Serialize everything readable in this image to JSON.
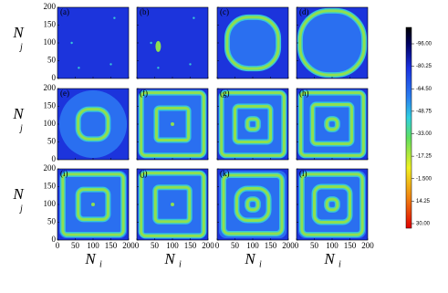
{
  "panels": [
    {
      "label": "(a)"
    },
    {
      "label": "(b)"
    },
    {
      "label": "(c)"
    },
    {
      "label": "(d)"
    },
    {
      "label": "(e)"
    },
    {
      "label": "(f)"
    },
    {
      "label": "(g)"
    },
    {
      "label": "(h)"
    },
    {
      "label": "(i)"
    },
    {
      "label": "(j)"
    },
    {
      "label": "(k)"
    },
    {
      "label": "(l)"
    }
  ],
  "x_label": {
    "main": "N",
    "sub": "i"
  },
  "y_label": {
    "main": "N",
    "sub": "j"
  },
  "x_ticks": [
    0,
    50,
    100,
    150,
    200
  ],
  "y_ticks": [
    0,
    50,
    100,
    150,
    200
  ],
  "colorbar": {
    "ticks": [
      "-96.00",
      "-80.25",
      "-64.50",
      "-48.75",
      "-33.00",
      "-17.25",
      "-1.500",
      "14.25",
      "30.00"
    ]
  }
}
